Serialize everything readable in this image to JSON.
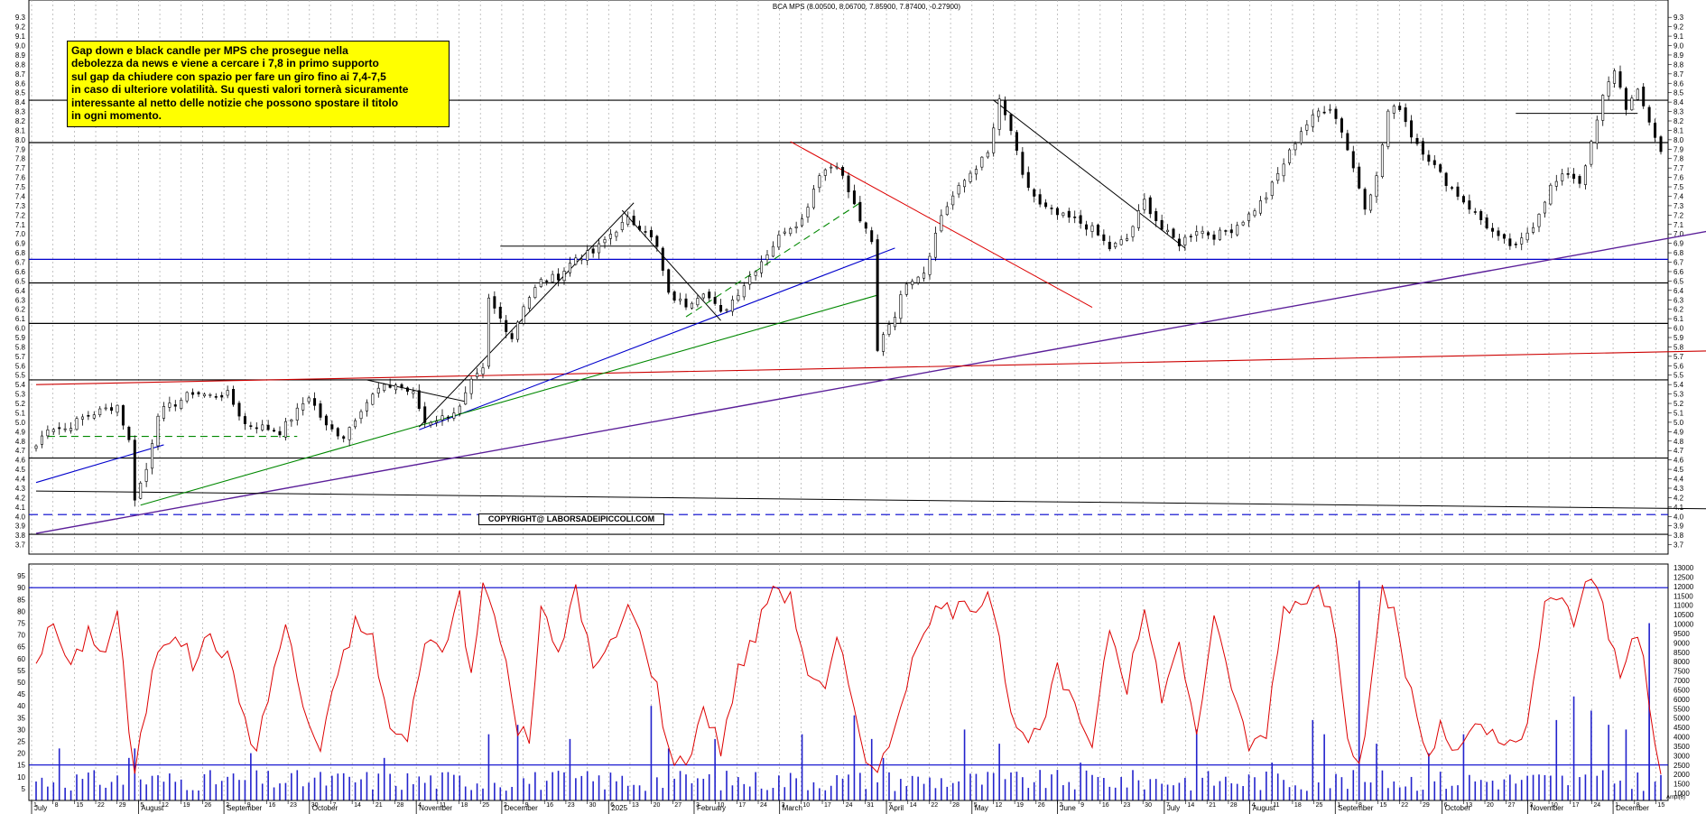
{
  "chart_data": [
    {
      "type": "candlestick",
      "title": "BCA MPS (8.00500, 8.06700, 7.85900, 7.87400, -0.27900)",
      "ylim": [
        3.6,
        9.35
      ],
      "y_ticks": [
        3.7,
        3.8,
        3.9,
        4.0,
        4.1,
        4.2,
        4.3,
        4.4,
        4.5,
        4.6,
        4.7,
        4.8,
        4.9,
        5.0,
        5.1,
        5.2,
        5.3,
        5.4,
        5.5,
        5.6,
        5.7,
        5.8,
        5.9,
        6.0,
        6.1,
        6.2,
        6.3,
        6.4,
        6.5,
        6.6,
        6.7,
        6.8,
        6.9,
        7.0,
        7.1,
        7.2,
        7.3,
        7.4,
        7.5,
        7.6,
        7.7,
        7.8,
        7.9,
        8.0,
        8.1,
        8.2,
        8.3,
        8.4,
        8.5,
        8.6,
        8.7,
        8.8,
        8.9,
        9.0,
        9.1,
        9.2,
        9.3
      ],
      "grid": "vertical",
      "levels": [
        {
          "value": 8.42,
          "color": "#000000",
          "style": "solid"
        },
        {
          "value": 7.97,
          "color": "#000000",
          "style": "solid"
        },
        {
          "value": 6.73,
          "color": "#0000cc",
          "style": "solid"
        },
        {
          "value": 6.48,
          "color": "#000000",
          "style": "solid"
        },
        {
          "value": 6.05,
          "color": "#000000",
          "style": "solid"
        },
        {
          "value": 5.45,
          "color": "#000000",
          "style": "solid"
        },
        {
          "value": 4.62,
          "color": "#000000",
          "style": "solid"
        },
        {
          "value": 4.02,
          "color": "#0000cc",
          "style": "dashed"
        },
        {
          "value": 3.81,
          "color": "#000000",
          "style": "solid"
        }
      ],
      "annotation": "Gap down e black candle per MPS che prosegue nella\ndebolezza da news e viene a cercare i 7,8 in primo supporto\nsul gap da chiudere con spazio per fare un giro fino ai 7,4-7,5\nin caso di ulteriore volatilità. Su questi valori tornerà sicuramente\ninteressante al netto delle notizie che possono spostare il titolo\nin ogni momento.",
      "copyright": "COPYRIGHT@ LABORSADEIPICCOLI.COM",
      "close_anchors": [
        [
          0,
          4.75
        ],
        [
          2,
          4.95
        ],
        [
          5,
          4.93
        ],
        [
          8,
          5.05
        ],
        [
          11,
          5.12
        ],
        [
          14,
          5.18
        ],
        [
          16,
          4.8
        ],
        [
          17,
          4.2
        ],
        [
          19,
          4.5
        ],
        [
          21,
          5.1
        ],
        [
          24,
          5.2
        ],
        [
          27,
          5.32
        ],
        [
          30,
          5.28
        ],
        [
          33,
          5.3
        ],
        [
          36,
          4.98
        ],
        [
          39,
          4.95
        ],
        [
          42,
          4.9
        ],
        [
          45,
          5.12
        ],
        [
          47,
          5.28
        ],
        [
          50,
          4.95
        ],
        [
          53,
          4.85
        ],
        [
          56,
          5.15
        ],
        [
          59,
          5.35
        ],
        [
          62,
          5.4
        ],
        [
          65,
          5.3
        ],
        [
          67,
          5.0
        ],
        [
          70,
          5.05
        ],
        [
          73,
          5.15
        ],
        [
          75,
          5.42
        ],
        [
          77,
          5.55
        ],
        [
          78,
          6.3
        ],
        [
          80,
          6.1
        ],
        [
          82,
          5.9
        ],
        [
          84,
          6.25
        ],
        [
          87,
          6.5
        ],
        [
          90,
          6.55
        ],
        [
          93,
          6.75
        ],
        [
          96,
          6.8
        ],
        [
          99,
          7.0
        ],
        [
          102,
          7.15
        ],
        [
          105,
          7.05
        ],
        [
          107,
          6.85
        ],
        [
          109,
          6.35
        ],
        [
          112,
          6.25
        ],
        [
          115,
          6.4
        ],
        [
          118,
          6.15
        ],
        [
          120,
          6.3
        ],
        [
          123,
          6.55
        ],
        [
          126,
          6.8
        ],
        [
          129,
          7.05
        ],
        [
          132,
          7.15
        ],
        [
          135,
          7.65
        ],
        [
          138,
          7.75
        ],
        [
          140,
          7.45
        ],
        [
          142,
          7.15
        ],
        [
          144,
          6.9
        ],
        [
          145,
          5.75
        ],
        [
          146,
          5.95
        ],
        [
          148,
          6.15
        ],
        [
          150,
          6.5
        ],
        [
          153,
          6.6
        ],
        [
          156,
          7.2
        ],
        [
          158,
          7.4
        ],
        [
          161,
          7.65
        ],
        [
          164,
          7.85
        ],
        [
          166,
          8.4
        ],
        [
          168,
          8.1
        ],
        [
          170,
          7.6
        ],
        [
          173,
          7.3
        ],
        [
          176,
          7.2
        ],
        [
          179,
          7.15
        ],
        [
          182,
          7.05
        ],
        [
          185,
          6.85
        ],
        [
          188,
          6.95
        ],
        [
          191,
          7.35
        ],
        [
          194,
          7.05
        ],
        [
          197,
          6.9
        ],
        [
          200,
          7.05
        ],
        [
          203,
          6.98
        ],
        [
          206,
          7.05
        ],
        [
          209,
          7.2
        ],
        [
          212,
          7.4
        ],
        [
          215,
          7.75
        ],
        [
          218,
          8.1
        ],
        [
          221,
          8.3
        ],
        [
          223,
          8.35
        ],
        [
          225,
          8.1
        ],
        [
          227,
          7.7
        ],
        [
          229,
          7.3
        ],
        [
          231,
          7.6
        ],
        [
          233,
          8.3
        ],
        [
          235,
          8.35
        ],
        [
          237,
          8.05
        ],
        [
          240,
          7.8
        ],
        [
          243,
          7.55
        ],
        [
          246,
          7.35
        ],
        [
          249,
          7.15
        ],
        [
          252,
          6.95
        ],
        [
          255,
          6.85
        ],
        [
          258,
          7.1
        ],
        [
          261,
          7.5
        ],
        [
          264,
          7.65
        ],
        [
          266,
          7.55
        ],
        [
          268,
          7.95
        ],
        [
          270,
          8.45
        ],
        [
          272,
          8.75
        ],
        [
          274,
          8.35
        ],
        [
          276,
          8.5
        ],
        [
          278,
          8.2
        ],
        [
          280,
          7.874
        ]
      ]
    },
    {
      "type": "oscillator-volume",
      "y_ticks": [
        5,
        10,
        15,
        20,
        25,
        30,
        35,
        40,
        45,
        50,
        55,
        60,
        65,
        70,
        75,
        80,
        85,
        90,
        95
      ],
      "ylim": [
        0,
        100
      ],
      "right_ticks": [
        "1000",
        "1500",
        "2000",
        "2500",
        "3000",
        "3500",
        "4000",
        "4500",
        "5000",
        "5500",
        "6000",
        "6500",
        "7000",
        "7500",
        "8000",
        "8500",
        "9000",
        "9500",
        "10000",
        "10500",
        "11000",
        "11500",
        "12000",
        "12500",
        "13000"
      ],
      "levels": [
        {
          "value": 90,
          "color": "#0000cc"
        },
        {
          "value": 15,
          "color": "#0000cc"
        }
      ],
      "corner_label": "Ampl(6)",
      "osc_anchors": [
        [
          0,
          60
        ],
        [
          3,
          75
        ],
        [
          6,
          55
        ],
        [
          9,
          72
        ],
        [
          12,
          62
        ],
        [
          14,
          82
        ],
        [
          16,
          30
        ],
        [
          17,
          10
        ],
        [
          19,
          40
        ],
        [
          21,
          65
        ],
        [
          24,
          72
        ],
        [
          27,
          58
        ],
        [
          30,
          70
        ],
        [
          33,
          60
        ],
        [
          36,
          35
        ],
        [
          38,
          20
        ],
        [
          40,
          45
        ],
        [
          43,
          75
        ],
        [
          46,
          40
        ],
        [
          49,
          20
        ],
        [
          52,
          55
        ],
        [
          55,
          75
        ],
        [
          58,
          68
        ],
        [
          61,
          30
        ],
        [
          64,
          25
        ],
        [
          67,
          70
        ],
        [
          70,
          62
        ],
        [
          73,
          88
        ],
        [
          75,
          50
        ],
        [
          77,
          92
        ],
        [
          80,
          70
        ],
        [
          83,
          30
        ],
        [
          85,
          25
        ],
        [
          87,
          82
        ],
        [
          90,
          60
        ],
        [
          93,
          92
        ],
        [
          96,
          55
        ],
        [
          99,
          65
        ],
        [
          102,
          82
        ],
        [
          105,
          65
        ],
        [
          107,
          48
        ],
        [
          109,
          20
        ],
        [
          112,
          15
        ],
        [
          115,
          40
        ],
        [
          118,
          22
        ],
        [
          121,
          55
        ],
        [
          124,
          70
        ],
        [
          127,
          92
        ],
        [
          130,
          85
        ],
        [
          133,
          55
        ],
        [
          136,
          45
        ],
        [
          138,
          68
        ],
        [
          141,
          40
        ],
        [
          143,
          20
        ],
        [
          145,
          10
        ],
        [
          147,
          25
        ],
        [
          150,
          50
        ],
        [
          153,
          70
        ],
        [
          156,
          85
        ],
        [
          158,
          75
        ],
        [
          160,
          88
        ],
        [
          162,
          80
        ],
        [
          164,
          92
        ],
        [
          166,
          70
        ],
        [
          168,
          35
        ],
        [
          170,
          25
        ],
        [
          173,
          28
        ],
        [
          176,
          55
        ],
        [
          179,
          38
        ],
        [
          182,
          25
        ],
        [
          185,
          75
        ],
        [
          188,
          48
        ],
        [
          191,
          80
        ],
        [
          194,
          45
        ],
        [
          197,
          65
        ],
        [
          200,
          30
        ],
        [
          203,
          75
        ],
        [
          206,
          50
        ],
        [
          209,
          22
        ],
        [
          212,
          30
        ],
        [
          215,
          82
        ],
        [
          218,
          85
        ],
        [
          221,
          90
        ],
        [
          224,
          72
        ],
        [
          226,
          30
        ],
        [
          228,
          14
        ],
        [
          230,
          45
        ],
        [
          232,
          88
        ],
        [
          234,
          80
        ],
        [
          236,
          55
        ],
        [
          238,
          35
        ],
        [
          240,
          18
        ],
        [
          242,
          30
        ],
        [
          245,
          20
        ],
        [
          248,
          30
        ],
        [
          251,
          28
        ],
        [
          254,
          22
        ],
        [
          257,
          30
        ],
        [
          260,
          82
        ],
        [
          263,
          88
        ],
        [
          265,
          75
        ],
        [
          267,
          90
        ],
        [
          269,
          92
        ],
        [
          271,
          70
        ],
        [
          273,
          55
        ],
        [
          275,
          70
        ],
        [
          277,
          60
        ],
        [
          279,
          20
        ],
        [
          280,
          12
        ]
      ],
      "volume_spikes": [
        [
          4,
          22
        ],
        [
          16,
          18
        ],
        [
          17,
          22
        ],
        [
          37,
          20
        ],
        [
          60,
          18
        ],
        [
          78,
          28
        ],
        [
          83,
          32
        ],
        [
          92,
          26
        ],
        [
          106,
          40
        ],
        [
          109,
          22
        ],
        [
          117,
          26
        ],
        [
          132,
          28
        ],
        [
          141,
          36
        ],
        [
          144,
          26
        ],
        [
          146,
          18
        ],
        [
          160,
          30
        ],
        [
          166,
          24
        ],
        [
          180,
          16
        ],
        [
          200,
          30
        ],
        [
          213,
          16
        ],
        [
          220,
          34
        ],
        [
          222,
          28
        ],
        [
          228,
          38
        ],
        [
          231,
          24
        ],
        [
          240,
          20
        ],
        [
          246,
          28
        ],
        [
          262,
          34
        ],
        [
          265,
          44
        ],
        [
          268,
          38
        ],
        [
          271,
          32
        ],
        [
          274,
          30
        ],
        [
          278,
          42
        ]
      ]
    }
  ],
  "x_axis": {
    "day_labels": [
      "1",
      "8",
      "15",
      "22",
      "29",
      "5",
      "12",
      "19",
      "26",
      "2",
      "9",
      "16",
      "23",
      "30",
      "7",
      "14",
      "21",
      "28",
      "4",
      "11",
      "18",
      "25",
      "2",
      "9",
      "16",
      "23",
      "30",
      "6",
      "13",
      "20",
      "27",
      "3",
      "10",
      "17",
      "24",
      "3",
      "10",
      "17",
      "24",
      "31",
      "7",
      "14",
      "22",
      "28",
      "5",
      "12",
      "19",
      "26",
      "2",
      "9",
      "16",
      "23",
      "30",
      "7",
      "14",
      "21",
      "28",
      "4",
      "11",
      "18",
      "25",
      "1",
      "8",
      "15",
      "22",
      "29",
      "6",
      "13",
      "20",
      "27",
      "3",
      "10",
      "17",
      "24",
      "1",
      "8",
      "15"
    ],
    "month_labels": [
      {
        "text": "July",
        "idx": 0
      },
      {
        "text": "August",
        "idx": 5
      },
      {
        "text": "September",
        "idx": 9
      },
      {
        "text": "October",
        "idx": 13
      },
      {
        "text": "November",
        "idx": 18
      },
      {
        "text": "December",
        "idx": 22
      },
      {
        "text": "2025",
        "idx": 27
      },
      {
        "text": "February",
        "idx": 31
      },
      {
        "text": "March",
        "idx": 35
      },
      {
        "text": "April",
        "idx": 40
      },
      {
        "text": "May",
        "idx": 44
      },
      {
        "text": "June",
        "idx": 48
      },
      {
        "text": "July",
        "idx": 53
      },
      {
        "text": "August",
        "idx": 57
      },
      {
        "text": "September",
        "idx": 61
      },
      {
        "text": "October",
        "idx": 66
      },
      {
        "text": "November",
        "idx": 70
      },
      {
        "text": "December",
        "idx": 74
      }
    ]
  }
}
